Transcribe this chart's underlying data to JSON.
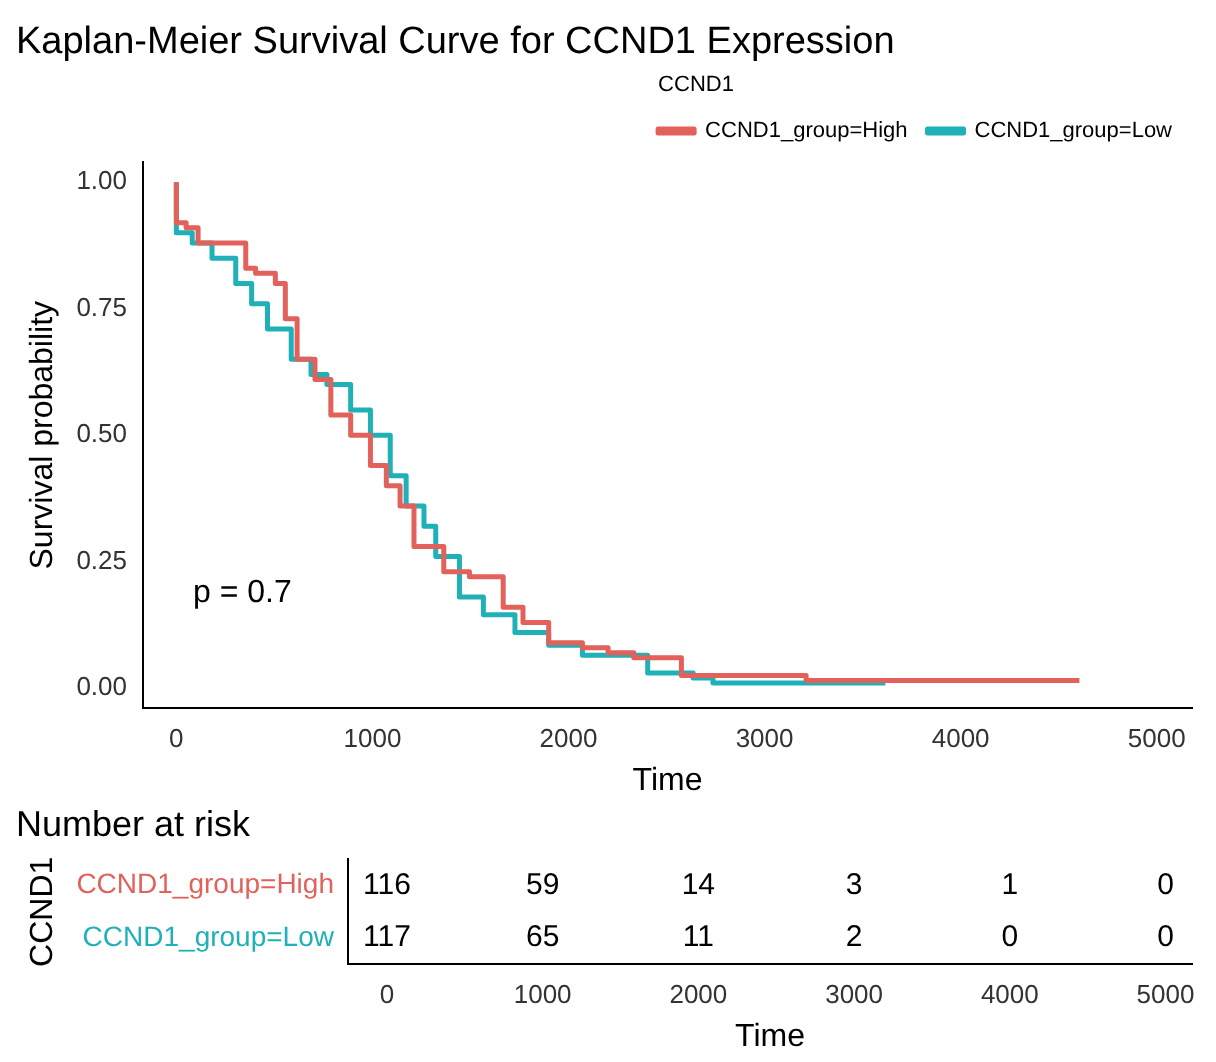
{
  "chart_data": [
    {
      "type": "step",
      "title": "Kaplan-Meier Survival Curve for CCND1 Expression",
      "xlabel": "Time",
      "ylabel": "Survival probability",
      "legend_title": "CCND1",
      "legend": "top",
      "grid": false,
      "xlim": [
        -170,
        5180
      ],
      "xticks": [
        0,
        1000,
        2000,
        3000,
        4000,
        5000
      ],
      "ylim": [
        -0.04,
        1.04
      ],
      "yticks": [
        {
          "value": 0,
          "label": "0.00"
        },
        {
          "value": 0.25,
          "label": "0.25"
        },
        {
          "value": 0.5,
          "label": "0.50"
        },
        {
          "value": 0.75,
          "label": "0.75"
        },
        {
          "value": 1,
          "label": "1.00"
        }
      ],
      "annotations": [
        "p = 0.7"
      ],
      "series": [
        {
          "name": "CCND1_group=High",
          "color": "#e2625b",
          "x": [
            0,
            50,
            111,
            212,
            354,
            404,
            505,
            556,
            616,
            707,
            788,
            889,
            990,
            1071,
            1141,
            1212,
            1364,
            1495,
            1667,
            1768,
            1899,
            2071,
            2202,
            2333,
            2576,
            2707,
            3212,
            3313,
            4606
          ],
          "values": [
            1.0,
            0.92,
            0.91,
            0.88,
            0.88,
            0.83,
            0.82,
            0.8,
            0.73,
            0.65,
            0.61,
            0.54,
            0.5,
            0.44,
            0.4,
            0.36,
            0.28,
            0.23,
            0.22,
            0.16,
            0.13,
            0.09,
            0.08,
            0.07,
            0.06,
            0.025,
            0.025,
            0.015,
            0.015
          ]
        },
        {
          "name": "CCND1_group=Low",
          "color": "#1fb0b8",
          "x": [
            0,
            81,
            182,
            303,
            384,
            465,
            586,
            687,
            768,
            889,
            990,
            1091,
            1172,
            1263,
            1323,
            1444,
            1566,
            1727,
            1899,
            2071,
            2152,
            2404,
            2636,
            2737,
            3242,
            3616
          ],
          "values": [
            1.0,
            0.9,
            0.88,
            0.85,
            0.8,
            0.76,
            0.71,
            0.65,
            0.62,
            0.6,
            0.55,
            0.5,
            0.42,
            0.36,
            0.32,
            0.26,
            0.18,
            0.145,
            0.11,
            0.085,
            0.065,
            0.065,
            0.03,
            0.02,
            0.01,
            0.01
          ]
        }
      ]
    },
    {
      "type": "heatmap",
      "title": "Number at risk",
      "xlabel": "Time",
      "ylabel": "CCND1",
      "data_labels": true,
      "categories": [
        "0",
        "1000",
        "2000",
        "3000",
        "4000",
        "5000"
      ],
      "y_categories": [
        "CCND1_group=High",
        "CCND1_group=Low"
      ],
      "colors": [
        "#e2625b",
        "#1fb0b8"
      ],
      "cells": [
        [
          116,
          59,
          14,
          3,
          1,
          0
        ],
        [
          117,
          65,
          11,
          2,
          0,
          0
        ]
      ]
    }
  ]
}
